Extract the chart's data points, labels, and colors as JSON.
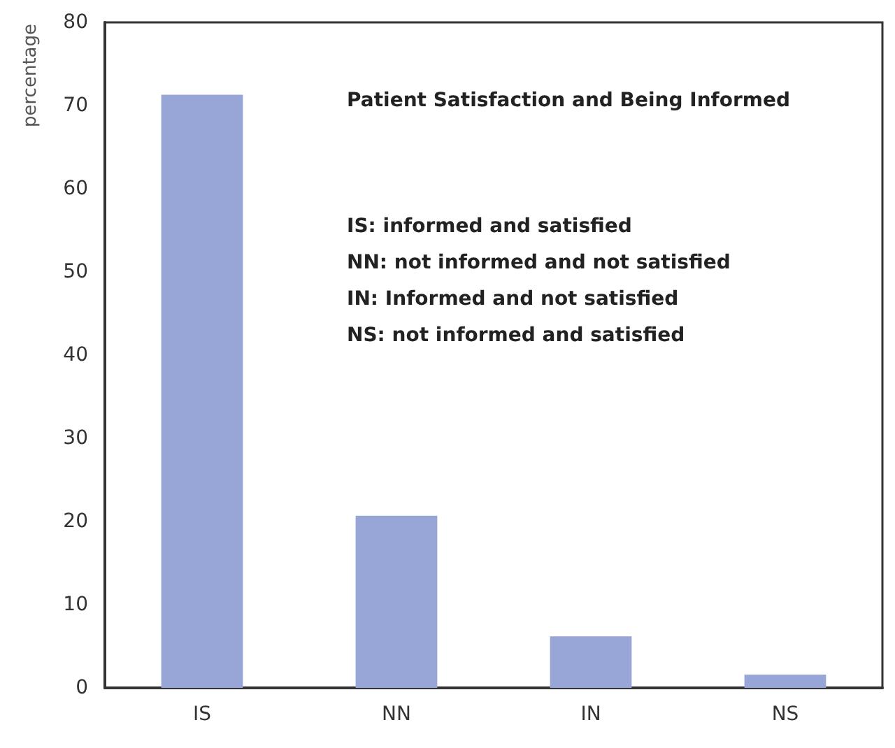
{
  "chart_data": {
    "type": "bar",
    "title": "Patient Satisfaction and Being Informed",
    "ylabel": "percentage",
    "categories": [
      "IS",
      "NN",
      "IN",
      "NS"
    ],
    "values": [
      71.3,
      20.7,
      6.2,
      1.6
    ],
    "color": "#97a6d6",
    "ylim": [
      0,
      80
    ],
    "yticks": [
      0,
      10,
      20,
      30,
      40,
      50,
      60,
      70,
      80
    ],
    "grid": false,
    "annotations": [
      "IS: informed and satisfied",
      "NN: not informed and not satisfied",
      "IN: Informed and not satisfied",
      "NS: not informed and satisfied"
    ]
  }
}
